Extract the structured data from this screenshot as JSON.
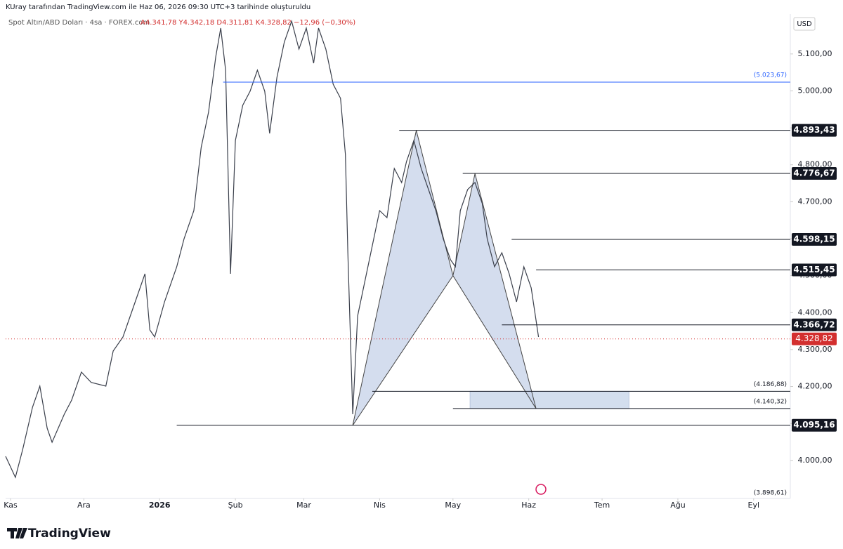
{
  "chart_data": {
    "type": "line",
    "title": "KUray tarafından TradingView.com ile Haz 06, 2026 09:30 UTC+3 tarihinde oluşturuldu",
    "subtitle": "Spot Altın/ABD Doları · 4sa · FOREX.com",
    "ohlc": "A4.341,78 Y4.342,18 D4.311,81 K4.328,82 −12,96 (−0,30%)",
    "currency": "USD",
    "brand": "TradingView",
    "color": "#3a3f4b",
    "x": [
      -2,
      2,
      5,
      9,
      12,
      15,
      17,
      22,
      25,
      29,
      33,
      39,
      42,
      46,
      50,
      55,
      57,
      59,
      63,
      68,
      71,
      75,
      78,
      81,
      84,
      86,
      88,
      90,
      92,
      95,
      98,
      101,
      104,
      106,
      109,
      112,
      115,
      118,
      121,
      124,
      126,
      129,
      132,
      135,
      137,
      138,
      140,
      142,
      145,
      148,
      151,
      154,
      157,
      160,
      162,
      165,
      168,
      171,
      174,
      177,
      180,
      182,
      184,
      187,
      190,
      193,
      195,
      198,
      201,
      204,
      207,
      210,
      213,
      216
    ],
    "values": [
      4011,
      3954,
      4030,
      4144,
      4201,
      4087,
      4049,
      4125,
      4163,
      4239,
      4211,
      4201,
      4296,
      4334,
      4410,
      4505,
      4353,
      4334,
      4429,
      4524,
      4600,
      4676,
      4847,
      4942,
      5094,
      5170,
      5056,
      4505,
      4866,
      4961,
      4999,
      5056,
      4999,
      4885,
      5037,
      5132,
      5189,
      5113,
      5170,
      5075,
      5170,
      5113,
      5018,
      4980,
      4828,
      4562,
      4125,
      4391,
      4486,
      4581,
      4676,
      4657,
      4790,
      4752,
      4809,
      4866,
      4790,
      4733,
      4676,
      4600,
      4543,
      4524,
      4676,
      4733,
      4752,
      4695,
      4600,
      4524,
      4562,
      4505,
      4429,
      4524,
      4467,
      4334
    ],
    "xlim": [
      -2,
      319
    ],
    "xticks": [
      {
        "value": 0,
        "label": "Kas"
      },
      {
        "value": 30,
        "label": "Ara"
      },
      {
        "value": 61,
        "label": "2026"
      },
      {
        "value": 92,
        "label": "Şub"
      },
      {
        "value": 120,
        "label": "Mar"
      },
      {
        "value": 151,
        "label": "Nis"
      },
      {
        "value": 181,
        "label": "May"
      },
      {
        "value": 212,
        "label": "Haz"
      },
      {
        "value": 242,
        "label": "Tem"
      },
      {
        "value": 273,
        "label": "Ağu"
      },
      {
        "value": 304,
        "label": "Eyl"
      }
    ],
    "ylim": [
      3897,
      5208
    ],
    "yticks": [
      {
        "value": 4000,
        "label": "4.000,00"
      },
      {
        "value": 4100,
        "label": "4.100,00"
      },
      {
        "value": 4200,
        "label": "4.200,00"
      },
      {
        "value": 4300,
        "label": "4.300,00"
      },
      {
        "value": 4400,
        "label": "4.400,00"
      },
      {
        "value": 4500,
        "label": "4.500,00"
      },
      {
        "value": 4600,
        "label": "4.600,00"
      },
      {
        "value": 4700,
        "label": "4.700,00"
      },
      {
        "value": 4800,
        "label": "4.800,00"
      },
      {
        "value": 4900,
        "label": "4.900,00"
      },
      {
        "value": 5000,
        "label": "5.000,00"
      },
      {
        "value": 5100,
        "label": "5.100,00"
      }
    ],
    "grid": false,
    "levels": [
      {
        "value": 5023.67,
        "label": "(5.023,67)",
        "x": 87,
        "style": "note",
        "color": "#2962ff"
      },
      {
        "value": 4893.43,
        "label": "4.893,43",
        "x": 159,
        "style": "box",
        "color": "#131722"
      },
      {
        "value": 4776.67,
        "label": "4.776,67",
        "x": 185,
        "style": "box",
        "color": "#131722"
      },
      {
        "value": 4598.15,
        "label": "4.598,15",
        "x": 205,
        "style": "box",
        "color": "#131722"
      },
      {
        "value": 4515.45,
        "label": "4.515,45",
        "x": 215,
        "style": "box",
        "color": "#131722"
      },
      {
        "value": 4366.72,
        "label": "4.366,72",
        "x": 201,
        "style": "box",
        "color": "#131722"
      },
      {
        "value": 4186.88,
        "label": "(4.186,88)",
        "x": 148,
        "style": "note",
        "color": "#131722"
      },
      {
        "value": 4140.32,
        "label": "(4.140,32)",
        "x": 181,
        "style": "note",
        "color": "#131722"
      },
      {
        "value": 4095.16,
        "label": "4.095,16",
        "x": 68,
        "style": "box",
        "color": "#131722"
      }
    ],
    "current": {
      "value": 4328.82,
      "label": "4.328,82",
      "color": "#d32f2f"
    },
    "range_low": {
      "value": 3898.61,
      "label": "(3.898,61)"
    },
    "pattern": {
      "x": [
        140,
        166,
        181,
        190,
        215
      ],
      "values": [
        4095,
        4893,
        4500,
        4776,
        4140
      ],
      "color": "#c5d2e8"
    },
    "zone": {
      "x": [
        188,
        253
      ],
      "values": [
        4186.88,
        4140.32
      ],
      "color": "#d3deee"
    }
  }
}
